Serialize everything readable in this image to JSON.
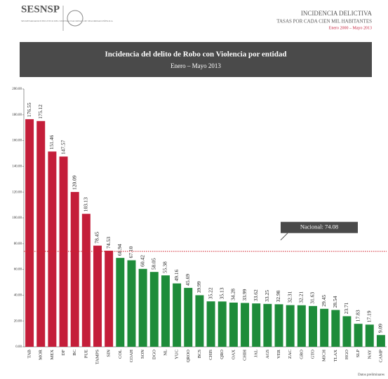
{
  "header": {
    "logo": "SESNSP",
    "logo_sub": "SECRETARIADO EJECUTIVO DEL SISTEMA NACIONAL DE SEGURIDAD PÚBLICA",
    "right_title": "INCIDENCIA DELICTIVA",
    "right_sub": "TASAS POR CADA CIEN MIL HABITANTES",
    "right_period": "Enero 2000 – Mayo 2013"
  },
  "chart_data": {
    "type": "bar",
    "title": "Incidencia del delito de Robo con Violencia por entidad",
    "subtitle": "Enero – Mayo 2013",
    "categories": [
      "TAB",
      "MOR",
      "MEX",
      "DF",
      "BC",
      "PUE",
      "TAMPS",
      "SIN",
      "COL",
      "COAH",
      "SON",
      "DGO",
      "NL",
      "YUC",
      "QROO",
      "BCS",
      "CHIS",
      "QRO",
      "OAX",
      "CHIH",
      "JAL",
      "AGS",
      "VER",
      "ZAC",
      "GRO",
      "GTO",
      "MICH",
      "TLAX",
      "HGO",
      "SLP",
      "NAY",
      "CAMP"
    ],
    "values": [
      176.55,
      175.12,
      151.46,
      147.57,
      120.09,
      103.13,
      78.45,
      74.53,
      68.94,
      67.1,
      60.42,
      58.05,
      55.38,
      49.16,
      45.69,
      39.99,
      35.22,
      35.13,
      34.28,
      33.99,
      33.62,
      33.25,
      32.98,
      32.31,
      32.21,
      31.63,
      29.45,
      28.54,
      23.71,
      17.83,
      17.19,
      9.09
    ],
    "value_labels": [
      "176.55",
      "175.12",
      "151.46",
      "147.57",
      "120.09",
      "103.13",
      "78.45",
      "74.53",
      "68.94",
      "67.10",
      "60.42",
      "58.05",
      "55.38",
      "49.16",
      "45.69",
      "39.99",
      "35.22",
      "35.13",
      "34.28",
      "33.99",
      "33.62",
      "33.25",
      "32.98",
      "32.31",
      "32.21",
      "31.63",
      "29.45",
      "28.54",
      "23.71",
      "17.83",
      "17.19",
      "9.09"
    ],
    "colors": [
      "#c41e3a",
      "#c41e3a",
      "#c41e3a",
      "#c41e3a",
      "#c41e3a",
      "#c41e3a",
      "#c41e3a",
      "#c41e3a",
      "#1e8c3a",
      "#1e8c3a",
      "#1e8c3a",
      "#1e8c3a",
      "#1e8c3a",
      "#1e8c3a",
      "#1e8c3a",
      "#1e8c3a",
      "#1e8c3a",
      "#1e8c3a",
      "#1e8c3a",
      "#1e8c3a",
      "#1e8c3a",
      "#1e8c3a",
      "#1e8c3a",
      "#1e8c3a",
      "#1e8c3a",
      "#1e8c3a",
      "#1e8c3a",
      "#1e8c3a",
      "#1e8c3a",
      "#1e8c3a",
      "#1e8c3a",
      "#1e8c3a"
    ],
    "ylim": [
      0,
      200
    ],
    "yticks": [
      {
        "value": 0,
        "label": "0.00"
      },
      {
        "value": 20,
        "label": "20.00"
      },
      {
        "value": 40,
        "label": "40.00"
      },
      {
        "value": 60,
        "label": "60.00"
      },
      {
        "value": 80,
        "label": "80.00"
      },
      {
        "value": 100,
        "label": "100.00"
      },
      {
        "value": 120,
        "label": "120.00"
      },
      {
        "value": 140,
        "label": "140.00"
      },
      {
        "value": 160,
        "label": "160.00"
      },
      {
        "value": 180,
        "label": "180.00"
      },
      {
        "value": 200,
        "label": "200.00"
      }
    ],
    "reference": {
      "value": 74.08,
      "label": "Nacional: 74.08",
      "color": "#d0202a"
    },
    "footnote": "Datos preliminares"
  }
}
